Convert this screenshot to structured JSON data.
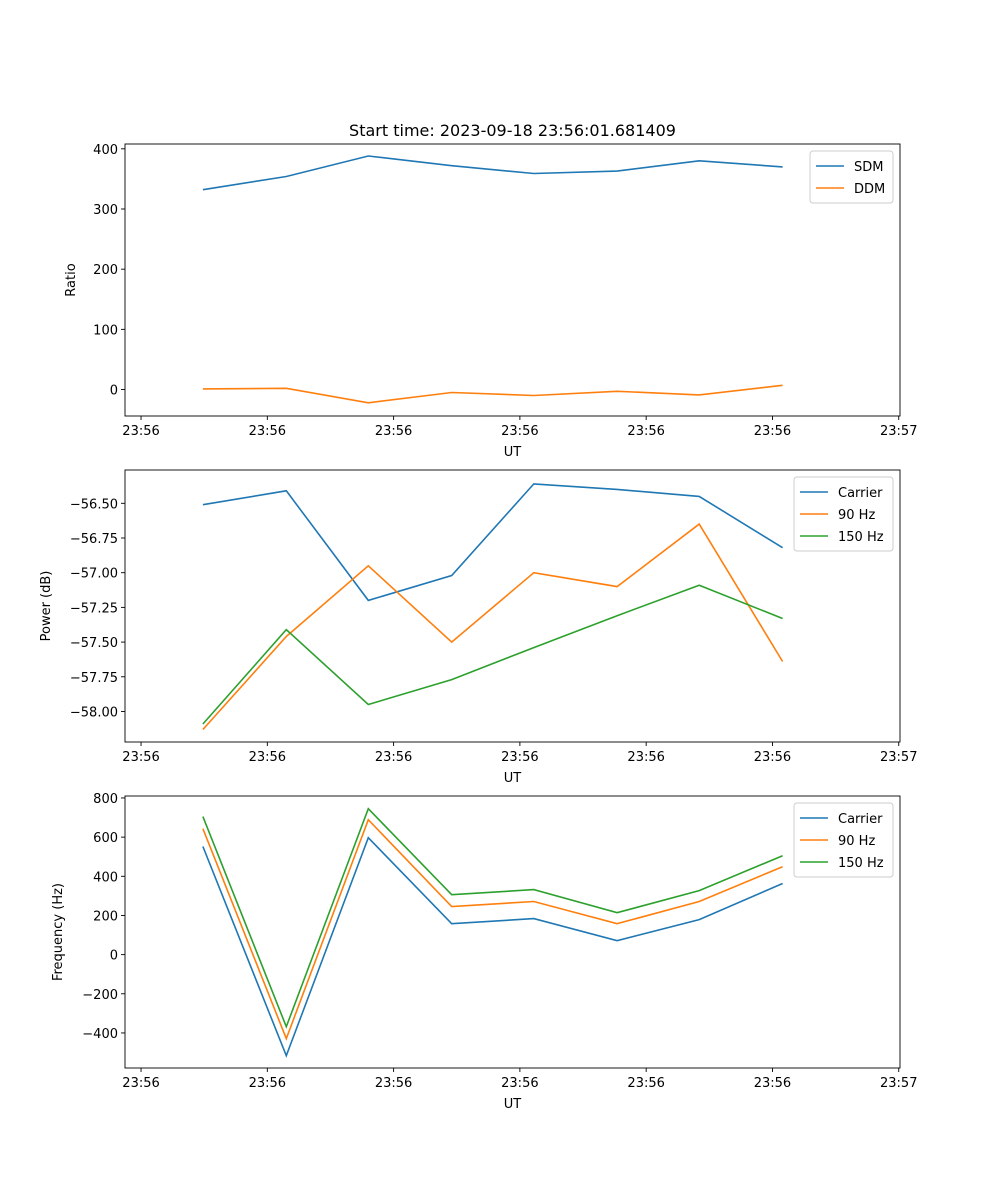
{
  "title": "Start time: 2023-09-18 23:56:01.681409",
  "colors": {
    "blue": "#1f77b4",
    "orange": "#ff7f0e",
    "green": "#2ca02c"
  },
  "chart_data": [
    {
      "type": "line",
      "xlabel": "UT",
      "ylabel": "Ratio",
      "xlim": [
        -1.27,
        60.1
      ],
      "xticks": [
        0,
        10,
        20,
        30,
        40,
        50,
        60
      ],
      "xtick_labels": [
        "23:56",
        "23:56",
        "23:56",
        "23:56",
        "23:56",
        "23:56",
        "23:57"
      ],
      "ylim": [
        -44,
        408
      ],
      "yticks": [
        0,
        100,
        200,
        300,
        400
      ],
      "ytick_labels": [
        "0",
        "100",
        "200",
        "300",
        "400"
      ],
      "legend": "top-right",
      "x": [
        4.9,
        11.5,
        18.0,
        24.6,
        31.1,
        37.7,
        44.2,
        50.8
      ],
      "series": [
        {
          "name": "SDM",
          "color": "#1f77b4",
          "values": [
            332,
            354,
            388,
            372,
            359,
            363,
            380,
            370
          ]
        },
        {
          "name": "DDM",
          "color": "#ff7f0e",
          "values": [
            1,
            2,
            -22,
            -5,
            -10,
            -3,
            -9,
            7
          ]
        }
      ]
    },
    {
      "type": "line",
      "xlabel": "UT",
      "ylabel": "Power (dB)",
      "xlim": [
        -1.27,
        60.1
      ],
      "xticks": [
        0,
        10,
        20,
        30,
        40,
        50,
        60
      ],
      "xtick_labels": [
        "23:56",
        "23:56",
        "23:56",
        "23:56",
        "23:56",
        "23:56",
        "23:57"
      ],
      "ylim": [
        -58.22,
        -56.26
      ],
      "yticks": [
        -56.5,
        -56.75,
        -57.0,
        -57.25,
        -57.5,
        -57.75,
        -58.0
      ],
      "ytick_labels": [
        "−56.50",
        "−56.75",
        "−57.00",
        "−57.25",
        "−57.50",
        "−57.75",
        "−58.00"
      ],
      "legend": "top-right",
      "x": [
        4.9,
        11.5,
        18.0,
        24.6,
        31.1,
        37.7,
        44.2,
        50.8
      ],
      "series": [
        {
          "name": "Carrier",
          "color": "#1f77b4",
          "values": [
            -56.51,
            -56.41,
            -57.2,
            -57.02,
            -56.36,
            -56.4,
            -56.45,
            -56.82
          ]
        },
        {
          "name": "90 Hz",
          "color": "#ff7f0e",
          "values": [
            -58.13,
            -57.46,
            -56.95,
            -57.5,
            -57.0,
            -57.1,
            -56.65,
            -57.64
          ]
        },
        {
          "name": "150 Hz",
          "color": "#2ca02c",
          "values": [
            -58.09,
            -57.41,
            -57.95,
            -57.77,
            -57.54,
            -57.31,
            -57.09,
            -57.33
          ]
        }
      ]
    },
    {
      "type": "line",
      "xlabel": "UT",
      "ylabel": "Frequency (Hz)",
      "xlim": [
        -1.27,
        60.1
      ],
      "xticks": [
        0,
        10,
        20,
        30,
        40,
        50,
        60
      ],
      "xtick_labels": [
        "23:56",
        "23:56",
        "23:56",
        "23:56",
        "23:56",
        "23:56",
        "23:57"
      ],
      "ylim": [
        -579,
        810
      ],
      "yticks": [
        -400,
        -200,
        0,
        200,
        400,
        600,
        800
      ],
      "ytick_labels": [
        "−400",
        "−200",
        "0",
        "200",
        "400",
        "600",
        "800"
      ],
      "legend": "top-right",
      "x": [
        4.9,
        11.5,
        18.0,
        24.6,
        31.1,
        37.7,
        44.2,
        50.8
      ],
      "series": [
        {
          "name": "Carrier",
          "color": "#1f77b4",
          "values": [
            552,
            -516,
            597,
            158,
            184,
            71,
            179,
            363
          ]
        },
        {
          "name": "90 Hz",
          "color": "#ff7f0e",
          "values": [
            643,
            -429,
            689,
            245,
            271,
            158,
            271,
            449
          ]
        },
        {
          "name": "150 Hz",
          "color": "#2ca02c",
          "values": [
            705,
            -368,
            745,
            306,
            332,
            214,
            327,
            505
          ]
        }
      ]
    }
  ]
}
